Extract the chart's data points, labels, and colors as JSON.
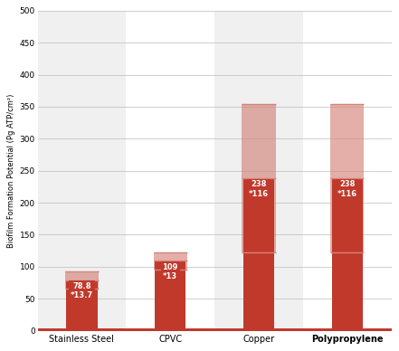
{
  "categories": [
    "Stainless Steel",
    "CPVC",
    "Copper",
    "Polypropylene"
  ],
  "values": [
    78.8,
    109,
    238,
    238
  ],
  "errors": [
    13.7,
    13,
    116,
    116
  ],
  "bg_colors": [
    "#f0f0f0",
    "#ffffff",
    "#f0f0f0",
    "#ffffff"
  ],
  "error_fill_color": "#d4847a",
  "bar_fill_color": "#c0392b",
  "ylabel": "Biofilm Formation Potential (Pg ATP/cm²)",
  "ylim": [
    0,
    500
  ],
  "yticks": [
    0,
    50,
    100,
    150,
    200,
    250,
    300,
    350,
    400,
    450,
    500
  ],
  "grid_color": "#bbbbbb",
  "baseline_color": "#c0392b",
  "bar_width": 0.35,
  "figure_bg": "#ffffff",
  "axis_bg": "#ffffff",
  "label_format": [
    "78.8\n*13.7",
    "109\n*13",
    "238\n*116",
    "238\n*116"
  ]
}
